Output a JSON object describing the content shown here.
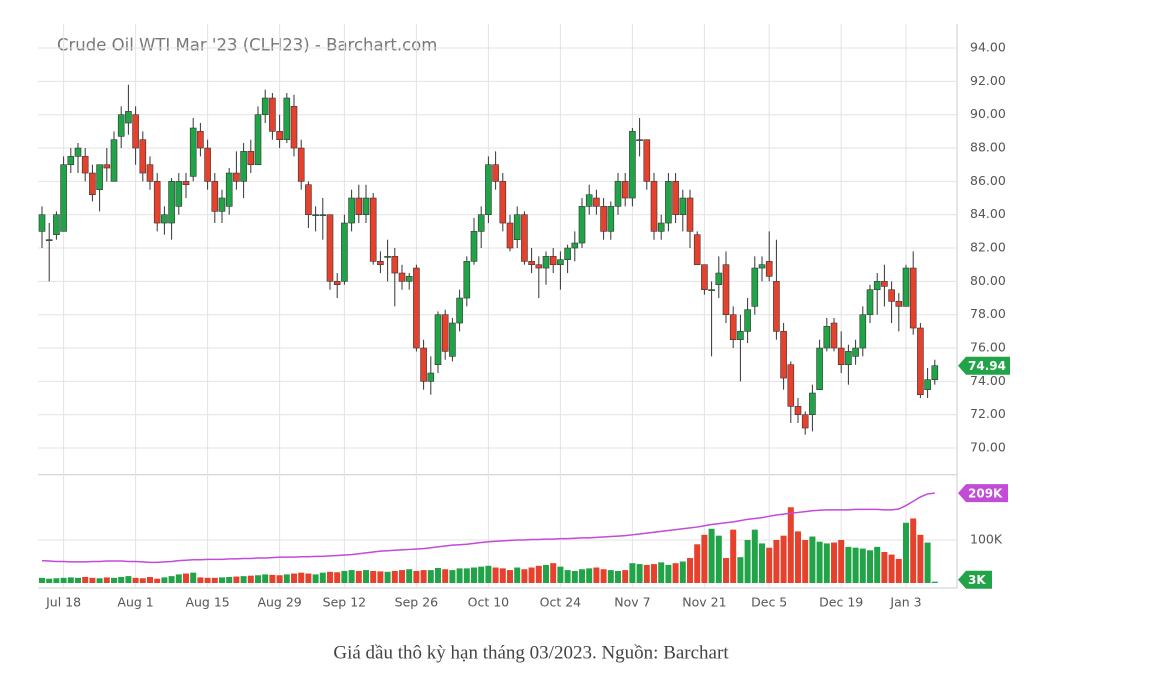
{
  "chart_data": {
    "type": "candlestick",
    "title": "Crude Oil WTI Mar '23 (CLH23) - Barchart.com",
    "caption": "Giá dầu thô kỳ hạn tháng 03/2023. Nguồn: Barchart",
    "categories": [
      null,
      null,
      null,
      "Jul 18",
      null,
      null,
      null,
      null,
      null,
      null,
      null,
      null,
      null,
      "Aug 1",
      null,
      null,
      null,
      null,
      null,
      null,
      null,
      null,
      null,
      "Aug 15",
      null,
      null,
      null,
      null,
      null,
      null,
      null,
      null,
      null,
      "Aug 29",
      null,
      null,
      null,
      null,
      null,
      null,
      null,
      null,
      "Sep 12",
      null,
      null,
      null,
      null,
      null,
      null,
      null,
      null,
      null,
      "Sep 26",
      null,
      null,
      null,
      null,
      null,
      null,
      null,
      null,
      null,
      "Oct 10",
      null,
      null,
      null,
      null,
      null,
      null,
      null,
      null,
      null,
      "Oct 24",
      null,
      null,
      null,
      null,
      null,
      null,
      null,
      null,
      null,
      "Nov 7",
      null,
      null,
      null,
      null,
      null,
      null,
      null,
      null,
      null,
      "Nov 21",
      null,
      null,
      null,
      null,
      null,
      null,
      null,
      null,
      "Dec 5",
      null,
      null,
      null,
      null,
      null,
      null,
      null,
      null,
      null,
      "Dec 19",
      null,
      null,
      null,
      null,
      null,
      null,
      null,
      null,
      "Jan 3",
      null,
      null,
      null,
      null
    ],
    "open": [
      83,
      82.5,
      82.8,
      83,
      87,
      87.5,
      87.5,
      86.5,
      85.5,
      87,
      86,
      88.7,
      89.5,
      90,
      88.5,
      87,
      86,
      83.5,
      83.5,
      84.5,
      86,
      86.3,
      89,
      88,
      86,
      84.2,
      84.5,
      86.5,
      86,
      87.8,
      87,
      90,
      91,
      89,
      88.5,
      90.5,
      88,
      85.8,
      84,
      84,
      84,
      80,
      80,
      83.5,
      85,
      84,
      85,
      81.2,
      81.5,
      81.5,
      80.5,
      80,
      80.8,
      76,
      74,
      75,
      78,
      75.5,
      77.5,
      79,
      81.2,
      83,
      84,
      87,
      86,
      83.5,
      82.5,
      84,
      81.2,
      81,
      80.8,
      81.5,
      81,
      81.3,
      82,
      82.3,
      84.5,
      85,
      84.5,
      83,
      84.5,
      86,
      85,
      88.5,
      88.5,
      86,
      83,
      83.5,
      86,
      84,
      85,
      82.8,
      81,
      79.5,
      79.8,
      81,
      78,
      76.5,
      77,
      78.5,
      80.8,
      81.2,
      80,
      77,
      75,
      72.5,
      72,
      72,
      73.5,
      76,
      77.5,
      76,
      75,
      75.5,
      76,
      78,
      79.5,
      80,
      79.5,
      78.8,
      78.5,
      80.8,
      77.2,
      73.5,
      74.1
    ],
    "high": [
      84.5,
      83.5,
      84.2,
      87.5,
      88,
      88.3,
      88,
      87,
      87,
      88,
      89,
      90.5,
      91.8,
      90.5,
      89,
      87.5,
      86.5,
      84.5,
      86.2,
      86.5,
      86.5,
      89.8,
      89.5,
      88.5,
      86.5,
      85.5,
      86.8,
      87.8,
      88.3,
      88.5,
      90.5,
      91.5,
      91.3,
      90,
      91.3,
      91.2,
      88.5,
      86,
      84.5,
      85,
      84,
      80.5,
      84,
      85.5,
      85.8,
      85.8,
      85.3,
      81.8,
      82.5,
      82,
      81,
      80.5,
      81,
      76.5,
      75.5,
      78.2,
      78.3,
      77.8,
      79.5,
      81.5,
      83.8,
      84.5,
      87.5,
      87.8,
      86.5,
      84,
      84.5,
      84.2,
      82,
      81.5,
      81.8,
      82,
      81.8,
      82.2,
      83,
      85,
      85.8,
      85.5,
      85,
      84.8,
      86.5,
      86.5,
      89.2,
      89.8,
      88.5,
      86.5,
      84,
      86.5,
      86.5,
      85.5,
      85.5,
      83,
      81,
      80,
      81.5,
      81.8,
      78.5,
      78,
      79,
      81.5,
      81.5,
      83,
      82.5,
      77.5,
      75.2,
      73,
      72.2,
      73.8,
      76.5,
      77.8,
      77.8,
      77,
      76.2,
      76.5,
      78.5,
      79.8,
      80.5,
      81,
      80,
      79.3,
      81,
      81.8,
      77.5,
      74.8,
      75.3
    ],
    "low": [
      82,
      80,
      82.5,
      83,
      86.5,
      86.5,
      86,
      84.8,
      84.2,
      86,
      86,
      88,
      88.8,
      87,
      86,
      85.5,
      83,
      82.8,
      82.5,
      84,
      85,
      86,
      87.5,
      85.5,
      83.5,
      83.5,
      84,
      85.5,
      85,
      86.5,
      87,
      89.5,
      88.5,
      88,
      88.3,
      87.5,
      85.5,
      83.2,
      83,
      82.5,
      79.5,
      79,
      79.8,
      83,
      83.5,
      83.5,
      81,
      80.5,
      80,
      78.5,
      79.5,
      79.5,
      75.8,
      73.5,
      73.2,
      74.5,
      75.3,
      75.2,
      77,
      78.5,
      81,
      82,
      83.5,
      85.5,
      83,
      81.8,
      82,
      81,
      80.5,
      79,
      79.8,
      80.5,
      79.5,
      80.5,
      81.2,
      82,
      84,
      84,
      82.5,
      82.5,
      84,
      84.5,
      84.5,
      87.5,
      85.5,
      82.5,
      82.5,
      83,
      83.5,
      83,
      82,
      81,
      79.2,
      75.5,
      79,
      77.5,
      76,
      74,
      76.3,
      78,
      80,
      80,
      76.5,
      73.5,
      71.5,
      71.5,
      70.8,
      71,
      73.5,
      75.8,
      75.8,
      74.5,
      73.8,
      75,
      75.5,
      77.5,
      78,
      78.5,
      77.5,
      77,
      78.5,
      76.8,
      73,
      73,
      73.8
    ],
    "close": [
      84,
      82.5,
      84,
      87,
      87.5,
      88,
      86.5,
      85.2,
      87,
      86.8,
      88.5,
      90,
      90.2,
      88,
      86.5,
      86,
      83.5,
      84,
      86,
      86,
      85.8,
      89.2,
      88,
      86,
      84.2,
      85,
      86.5,
      86,
      87.8,
      87,
      90,
      91,
      89,
      88.5,
      91,
      88,
      86,
      84,
      84,
      84,
      80,
      79.8,
      83.5,
      85,
      84,
      85,
      81.2,
      81,
      81.5,
      80.5,
      80,
      80.3,
      76,
      74,
      74.5,
      78,
      75.8,
      77.5,
      79,
      81.2,
      83,
      84,
      87,
      86,
      83.5,
      82,
      84,
      81.2,
      81,
      80.8,
      81.5,
      81,
      81.3,
      82,
      82.3,
      84.5,
      85.2,
      84.5,
      83,
      84.5,
      86,
      85,
      89,
      88.5,
      86,
      83,
      83.5,
      86,
      84,
      85,
      83,
      81,
      79.5,
      79.5,
      80.5,
      78,
      76.5,
      77,
      78.3,
      80.8,
      81,
      80.3,
      77,
      74.2,
      72.5,
      72,
      71.2,
      73.3,
      76,
      77.3,
      76,
      75,
      75.8,
      76,
      78,
      79.5,
      80,
      79.7,
      78.8,
      78.5,
      80.8,
      77.2,
      73.2,
      74.1,
      74.94
    ],
    "volume": [
      12000,
      10000,
      11000,
      12000,
      13000,
      12000,
      14000,
      12000,
      11000,
      13000,
      12000,
      14000,
      16000,
      12000,
      11000,
      14000,
      10000,
      13000,
      16000,
      20000,
      22000,
      24000,
      13000,
      12000,
      12000,
      13000,
      14000,
      15000,
      16000,
      17000,
      18000,
      20000,
      19000,
      18000,
      20000,
      22000,
      24000,
      22000,
      20000,
      24000,
      26000,
      25000,
      28000,
      30000,
      28000,
      30000,
      28000,
      27000,
      26000,
      28000,
      30000,
      32000,
      28000,
      30000,
      30000,
      35000,
      32000,
      30000,
      34000,
      34000,
      36000,
      38000,
      40000,
      36000,
      34000,
      30000,
      36000,
      32000,
      36000,
      40000,
      42000,
      46000,
      38000,
      30000,
      28000,
      32000,
      34000,
      36000,
      32000,
      30000,
      28000,
      30000,
      46000,
      44000,
      42000,
      44000,
      48000,
      42000,
      46000,
      50000,
      58000,
      90000,
      112000,
      126000,
      110000,
      58000,
      124000,
      60000,
      100000,
      124000,
      92000,
      82000,
      100000,
      110000,
      176000,
      120000,
      100000,
      108000,
      96000,
      92000,
      94000,
      100000,
      84000,
      82000,
      80000,
      76000,
      84000,
      72000,
      66000,
      56000,
      140000,
      150000,
      112000,
      94000,
      3000
    ],
    "volume_average": [
      52000,
      51000,
      50000,
      50000,
      49000,
      49000,
      49000,
      50000,
      50000,
      51000,
      51000,
      51000,
      50000,
      50000,
      49000,
      48000,
      48000,
      49000,
      50000,
      52000,
      53000,
      54000,
      54000,
      55000,
      55000,
      55000,
      56000,
      56000,
      57000,
      57000,
      58000,
      58000,
      59000,
      60000,
      60000,
      60000,
      61000,
      61000,
      62000,
      62000,
      63000,
      64000,
      65000,
      66000,
      68000,
      70000,
      72000,
      74000,
      75000,
      76000,
      77000,
      78000,
      79000,
      80000,
      82000,
      84000,
      86000,
      88000,
      89000,
      90000,
      92000,
      94000,
      96000,
      97000,
      98000,
      99000,
      100000,
      100000,
      101000,
      101000,
      102000,
      102000,
      103000,
      103000,
      104000,
      105000,
      105000,
      106000,
      107000,
      108000,
      109000,
      110000,
      112000,
      114000,
      116000,
      118000,
      120000,
      122000,
      124000,
      126000,
      128000,
      130000,
      133000,
      136000,
      138000,
      140000,
      142000,
      145000,
      148000,
      150000,
      152000,
      155000,
      158000,
      160000,
      162000,
      164000,
      166000,
      168000,
      169000,
      170000,
      170000,
      170000,
      170000,
      171000,
      171000,
      171000,
      171000,
      170000,
      170000,
      172000,
      180000,
      190000,
      200000,
      207000,
      209000
    ],
    "last_price": 74.94,
    "last_volume": {
      "value": 3000,
      "label": "3K"
    },
    "last_volume_average": {
      "value": 209000,
      "label": "209K"
    },
    "ylim": [
      68.4,
      95.4
    ],
    "yticks": [
      {
        "value": 70,
        "label": "70.00"
      },
      {
        "value": 72,
        "label": "72.00"
      },
      {
        "value": 74,
        "label": "74.00"
      },
      {
        "value": 76,
        "label": "76.00"
      },
      {
        "value": 78,
        "label": "78.00"
      },
      {
        "value": 80,
        "label": "80.00"
      },
      {
        "value": 82,
        "label": "82.00"
      },
      {
        "value": 84,
        "label": "84.00"
      },
      {
        "value": 86,
        "label": "86.00"
      },
      {
        "value": 88,
        "label": "88.00"
      },
      {
        "value": 90,
        "label": "90.00"
      },
      {
        "value": 92,
        "label": "92.00"
      },
      {
        "value": 94,
        "label": "94.00"
      }
    ],
    "y2lim": [
      0,
      251000
    ],
    "y2ticks": [
      {
        "value": 100000,
        "label": "100K"
      }
    ],
    "up_color": "#21a348",
    "down_color": "#e5412d",
    "average_color": "#c24bd8",
    "grid": true
  }
}
